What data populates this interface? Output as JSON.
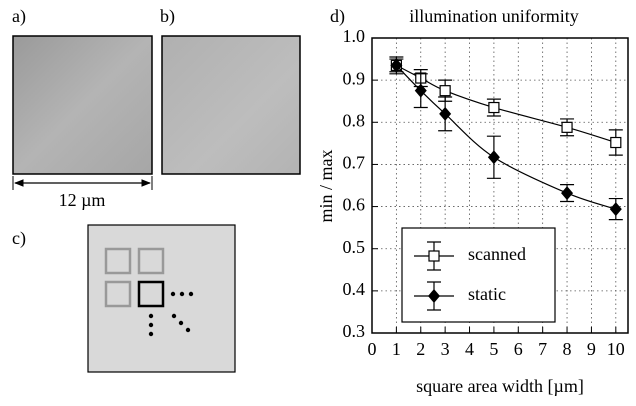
{
  "panel_labels": [
    "a)",
    "b)",
    "c)"
  ],
  "scale_bar": "12 µm",
  "chart_data": {
    "type": "line",
    "panel_label": "d)",
    "title": "illumination uniformity",
    "x_label": "square area width [µm]",
    "y_label": "min / max",
    "x": [
      1,
      2,
      3,
      5,
      8,
      10
    ],
    "series": [
      {
        "name": "scanned",
        "color": "#000000",
        "marker": "square",
        "values": [
          0.935,
          0.905,
          0.875,
          0.835,
          0.788,
          0.752
        ],
        "errors": [
          0.015,
          0.02,
          0.025,
          0.02,
          0.02,
          0.03
        ]
      },
      {
        "name": "static",
        "color": "#000000",
        "marker": "diamond",
        "values": [
          0.935,
          0.875,
          0.82,
          0.717,
          0.632,
          0.594
        ],
        "errors": [
          0.02,
          0.04,
          0.04,
          0.05,
          0.02,
          0.025
        ]
      }
    ],
    "xlim": [
      0,
      10.5
    ],
    "xticks": [
      0,
      1,
      2,
      3,
      4,
      5,
      6,
      7,
      8,
      9,
      10
    ],
    "ylim": [
      0.3,
      1.0
    ],
    "yticks": [
      0.3,
      0.4,
      0.5,
      0.6,
      0.7,
      0.8,
      0.9,
      {
        "value": 1,
        "label": "1.0"
      }
    ],
    "grid": true,
    "legend": "lower left"
  }
}
